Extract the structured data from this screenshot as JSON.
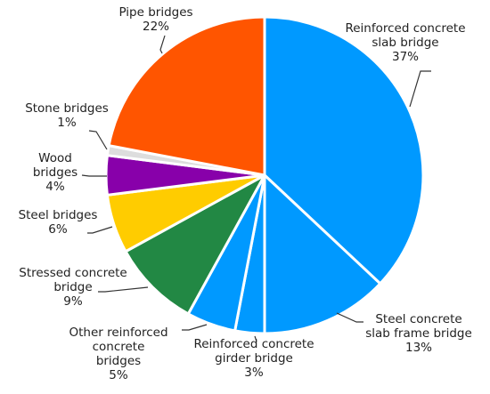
{
  "chart_data": {
    "type": "pie",
    "title": "",
    "start_angle_deg": 0,
    "direction": "clockwise",
    "slices": [
      {
        "name": "Reinforced concrete slab bridge",
        "label_lines": [
          "Reinforced concrete",
          "slab bridge"
        ],
        "value": 37,
        "value_label": "37%",
        "color": "#0099ff"
      },
      {
        "name": "Steel concrete slab frame bridge",
        "label_lines": [
          "Steel concrete",
          "slab frame bridge"
        ],
        "value": 13,
        "value_label": "13%",
        "color": "#0099ff"
      },
      {
        "name": "Reinforced concrete girder bridge",
        "label_lines": [
          "Reinforced concrete",
          "girder bridge"
        ],
        "value": 3,
        "value_label": "3%",
        "color": "#0099ff"
      },
      {
        "name": "Other reinforced concrete bridges",
        "label_lines": [
          "Other reinforced",
          "concrete",
          "bridges"
        ],
        "value": 5,
        "value_label": "5%",
        "color": "#0099ff"
      },
      {
        "name": "Stressed concrete bridge",
        "label_lines": [
          "Stressed concrete",
          "bridge"
        ],
        "value": 9,
        "value_label": "9%",
        "color": "#228844"
      },
      {
        "name": "Steel bridges",
        "label_lines": [
          "Steel bridges"
        ],
        "value": 6,
        "value_label": "6%",
        "color": "#ffcc00"
      },
      {
        "name": "Wood bridges",
        "label_lines": [
          "Wood",
          "bridges"
        ],
        "value": 4,
        "value_label": "4%",
        "color": "#8800aa"
      },
      {
        "name": "Stone bridges",
        "label_lines": [
          "Stone bridges"
        ],
        "value": 1,
        "value_label": "1%",
        "color": "#dddddd"
      },
      {
        "name": "Pipe bridges",
        "label_lines": [
          "Pipe bridges"
        ],
        "value": 22,
        "value_label": "22%",
        "color": "#ff5500"
      }
    ]
  }
}
